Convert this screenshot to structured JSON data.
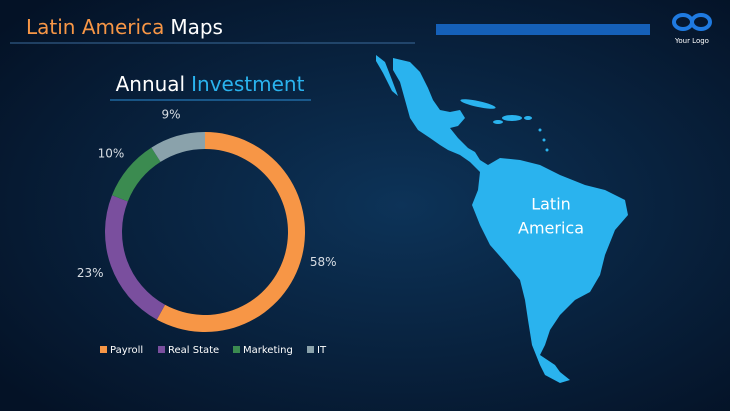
{
  "header": {
    "title_part1": "Latin America",
    "title_part2": "Maps",
    "logo_text": "Your Logo"
  },
  "map": {
    "label_lines": [
      "Latin",
      "America"
    ]
  },
  "chart_data": {
    "type": "donut",
    "title": [
      "Annual",
      "Investment"
    ],
    "categories": [
      "Payroll",
      "Real State",
      "Marketing",
      "IT"
    ],
    "values": [
      58,
      23,
      10,
      9
    ],
    "value_labels": [
      "58%",
      "23%",
      "10%",
      "9%"
    ],
    "colors": [
      "#f79646",
      "#7a4f9e",
      "#3b8b50",
      "#8aa2ab"
    ],
    "legend": "bottom"
  }
}
